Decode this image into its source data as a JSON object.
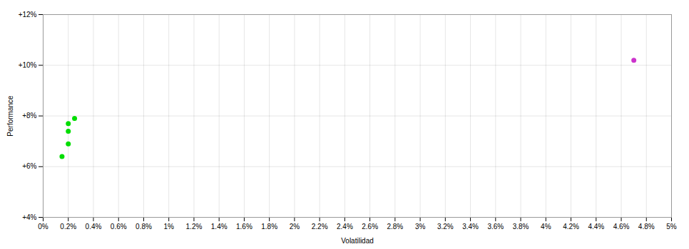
{
  "chart_data": {
    "type": "scatter",
    "xlabel": "Volatilidad",
    "ylabel": "Performance",
    "xlim": [
      0,
      0.05
    ],
    "ylim": [
      0.04,
      0.12
    ],
    "xticks": [
      {
        "value": 0,
        "label": "0%"
      },
      {
        "value": 0.002,
        "label": "0.2%"
      },
      {
        "value": 0.004,
        "label": "0.4%"
      },
      {
        "value": 0.006,
        "label": "0.6%"
      },
      {
        "value": 0.008,
        "label": "0.8%"
      },
      {
        "value": 0.01,
        "label": "1%"
      },
      {
        "value": 0.012,
        "label": "1.2%"
      },
      {
        "value": 0.014,
        "label": "1.4%"
      },
      {
        "value": 0.016,
        "label": "1.6%"
      },
      {
        "value": 0.018,
        "label": "1.8%"
      },
      {
        "value": 0.02,
        "label": "2%"
      },
      {
        "value": 0.022,
        "label": "2.2%"
      },
      {
        "value": 0.024,
        "label": "2.4%"
      },
      {
        "value": 0.026,
        "label": "2.6%"
      },
      {
        "value": 0.028,
        "label": "2.8%"
      },
      {
        "value": 0.03,
        "label": "3%"
      },
      {
        "value": 0.032,
        "label": "3.2%"
      },
      {
        "value": 0.034,
        "label": "3.4%"
      },
      {
        "value": 0.036,
        "label": "3.6%"
      },
      {
        "value": 0.038,
        "label": "3.8%"
      },
      {
        "value": 0.04,
        "label": "4%"
      },
      {
        "value": 0.042,
        "label": "4.2%"
      },
      {
        "value": 0.044,
        "label": "4.4%"
      },
      {
        "value": 0.046,
        "label": "4.6%"
      },
      {
        "value": 0.048,
        "label": "4.8%"
      },
      {
        "value": 0.05,
        "label": "5%"
      }
    ],
    "yticks": [
      {
        "value": 0.04,
        "label": "+4%"
      },
      {
        "value": 0.06,
        "label": "+6%"
      },
      {
        "value": 0.08,
        "label": "+8%"
      },
      {
        "value": 0.1,
        "label": "+10%"
      },
      {
        "value": 0.12,
        "label": "+12%"
      }
    ],
    "grid": true,
    "series": [
      {
        "color": "#00dd00",
        "x": [
          0.002,
          0.0025,
          0.002,
          0.002,
          0.0015
        ],
        "values": [
          0.077,
          0.079,
          0.074,
          0.069,
          0.064
        ]
      },
      {
        "color": "#cc33cc",
        "x": [
          0.047
        ],
        "values": [
          0.102
        ]
      }
    ]
  }
}
